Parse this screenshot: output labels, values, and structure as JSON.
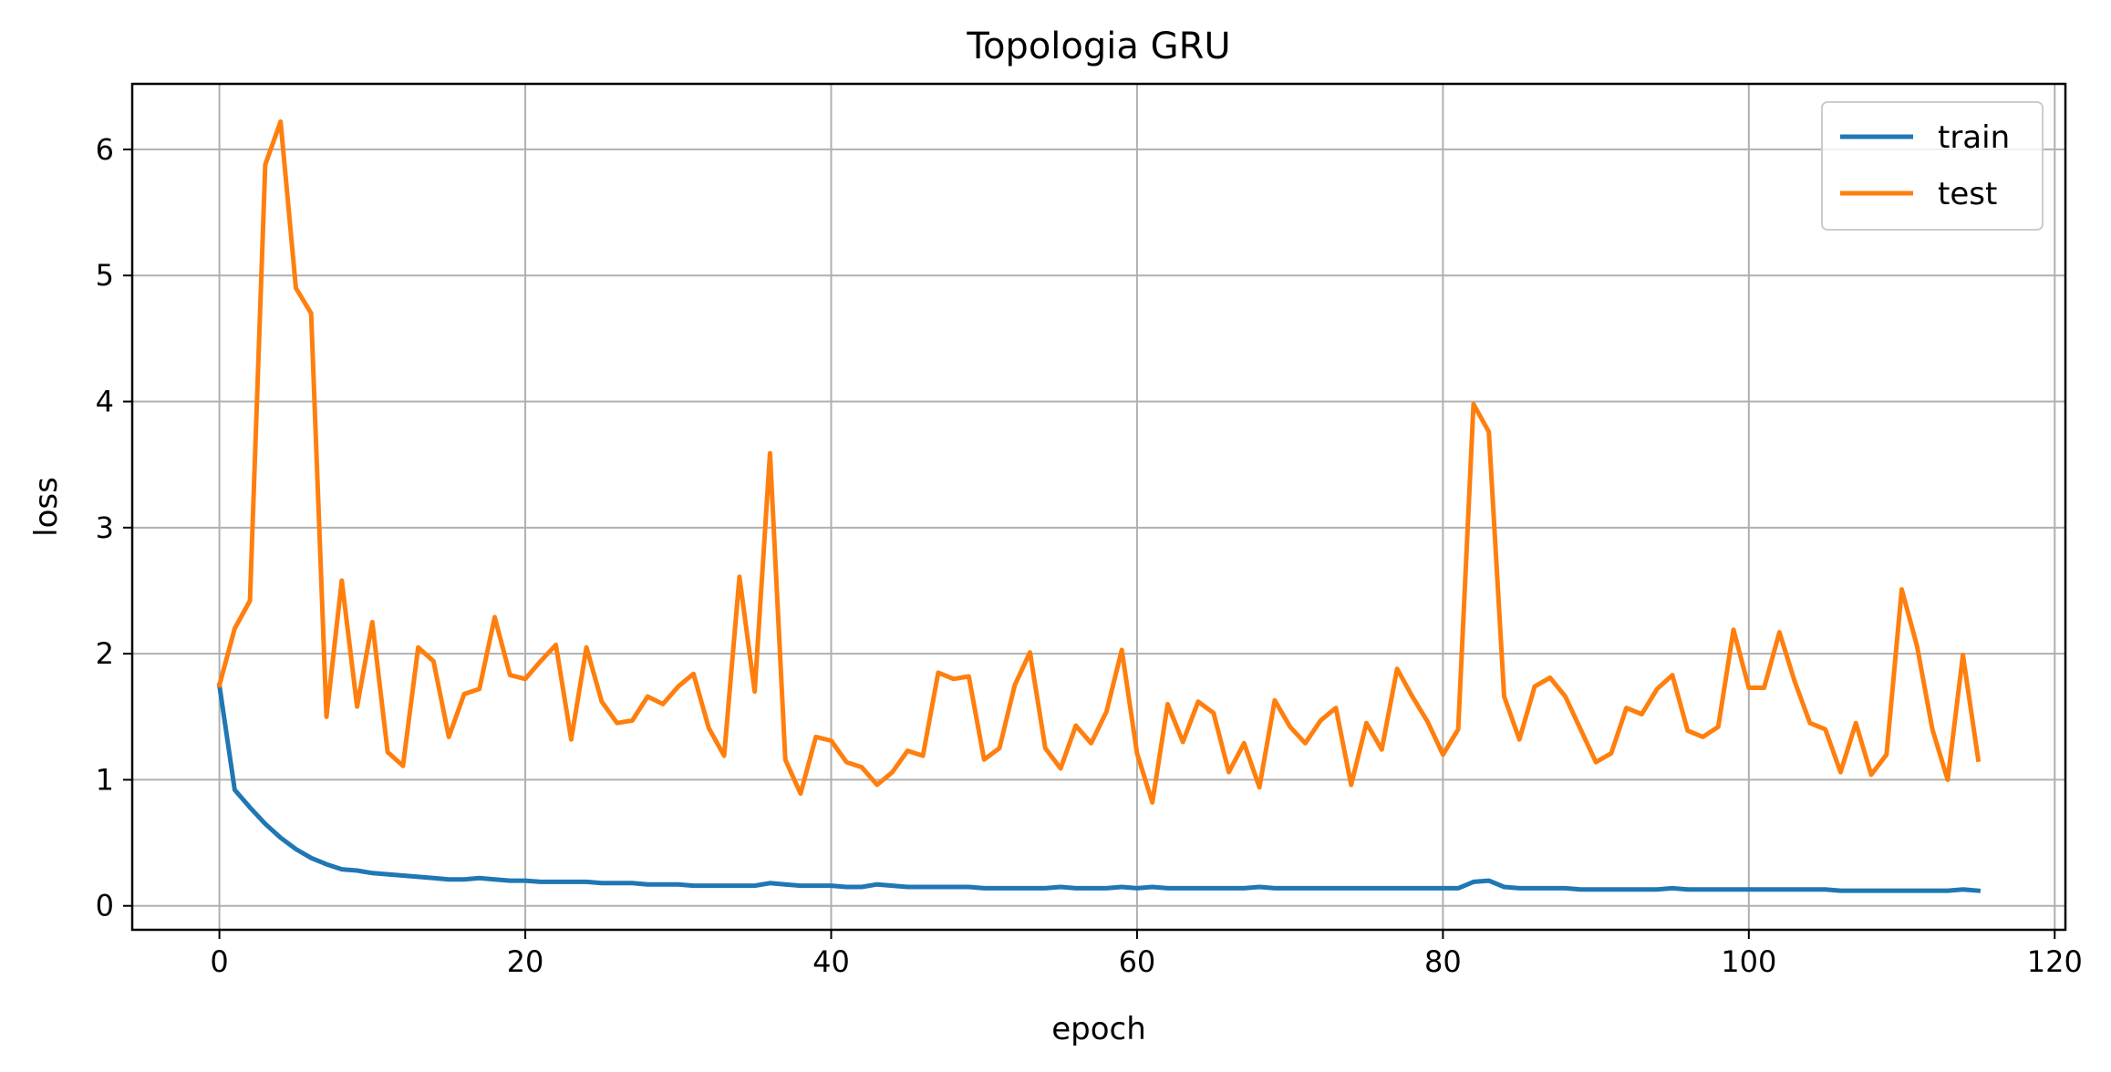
{
  "chart_data": {
    "type": "line",
    "title": "Topologia GRU",
    "xlabel": "epoch",
    "ylabel": "loss",
    "xlim": [
      -5.7,
      120.7
    ],
    "ylim": [
      -0.19,
      6.52
    ],
    "xticks": [
      0,
      20,
      40,
      60,
      80,
      100,
      120
    ],
    "yticks": [
      0,
      1,
      2,
      3,
      4,
      5,
      6
    ],
    "grid": true,
    "legend_position": "top-right",
    "colors": {
      "train": "#1f77b4",
      "test": "#ff7f0e",
      "grid": "#b0b0b0"
    },
    "series": [
      {
        "name": "train",
        "values": [
          1.75,
          0.92,
          0.78,
          0.65,
          0.54,
          0.45,
          0.38,
          0.33,
          0.29,
          0.28,
          0.26,
          0.25,
          0.24,
          0.23,
          0.22,
          0.21,
          0.21,
          0.22,
          0.21,
          0.2,
          0.2,
          0.19,
          0.19,
          0.19,
          0.19,
          0.18,
          0.18,
          0.18,
          0.17,
          0.17,
          0.17,
          0.16,
          0.16,
          0.16,
          0.16,
          0.16,
          0.18,
          0.17,
          0.16,
          0.16,
          0.16,
          0.15,
          0.15,
          0.17,
          0.16,
          0.15,
          0.15,
          0.15,
          0.15,
          0.15,
          0.14,
          0.14,
          0.14,
          0.14,
          0.14,
          0.15,
          0.14,
          0.14,
          0.14,
          0.15,
          0.14,
          0.15,
          0.14,
          0.14,
          0.14,
          0.14,
          0.14,
          0.14,
          0.15,
          0.14,
          0.14,
          0.14,
          0.14,
          0.14,
          0.14,
          0.14,
          0.14,
          0.14,
          0.14,
          0.14,
          0.14,
          0.14,
          0.19,
          0.2,
          0.15,
          0.14,
          0.14,
          0.14,
          0.14,
          0.13,
          0.13,
          0.13,
          0.13,
          0.13,
          0.13,
          0.14,
          0.13,
          0.13,
          0.13,
          0.13,
          0.13,
          0.13,
          0.13,
          0.13,
          0.13,
          0.13,
          0.12,
          0.12,
          0.12,
          0.12,
          0.12,
          0.12,
          0.12,
          0.12,
          0.13,
          0.12
        ]
      },
      {
        "name": "test",
        "values": [
          1.75,
          2.2,
          2.42,
          5.88,
          6.22,
          4.9,
          4.7,
          1.5,
          2.58,
          1.58,
          2.25,
          1.22,
          1.11,
          2.05,
          1.94,
          1.34,
          1.68,
          1.72,
          2.29,
          1.83,
          1.8,
          1.94,
          2.07,
          1.32,
          2.05,
          1.62,
          1.45,
          1.47,
          1.66,
          1.6,
          1.74,
          1.84,
          1.41,
          1.19,
          2.61,
          1.7,
          3.59,
          1.16,
          0.89,
          1.34,
          1.31,
          1.14,
          1.1,
          0.96,
          1.06,
          1.23,
          1.19,
          1.85,
          1.8,
          1.82,
          1.16,
          1.25,
          1.75,
          2.01,
          1.25,
          1.09,
          1.43,
          1.29,
          1.54,
          2.03,
          1.21,
          0.82,
          1.6,
          1.3,
          1.62,
          1.53,
          1.06,
          1.29,
          0.94,
          1.63,
          1.42,
          1.29,
          1.47,
          1.57,
          0.96,
          1.45,
          1.24,
          1.88,
          1.66,
          1.46,
          1.2,
          1.4,
          3.98,
          3.76,
          1.66,
          1.32,
          1.74,
          1.81,
          1.66,
          1.4,
          1.14,
          1.21,
          1.57,
          1.52,
          1.72,
          1.83,
          1.39,
          1.34,
          1.42,
          2.19,
          1.73,
          1.73,
          2.17,
          1.78,
          1.45,
          1.4,
          1.06,
          1.45,
          1.04,
          1.2,
          2.51,
          2.06,
          1.4,
          1.0,
          1.99,
          1.16
        ]
      }
    ]
  }
}
